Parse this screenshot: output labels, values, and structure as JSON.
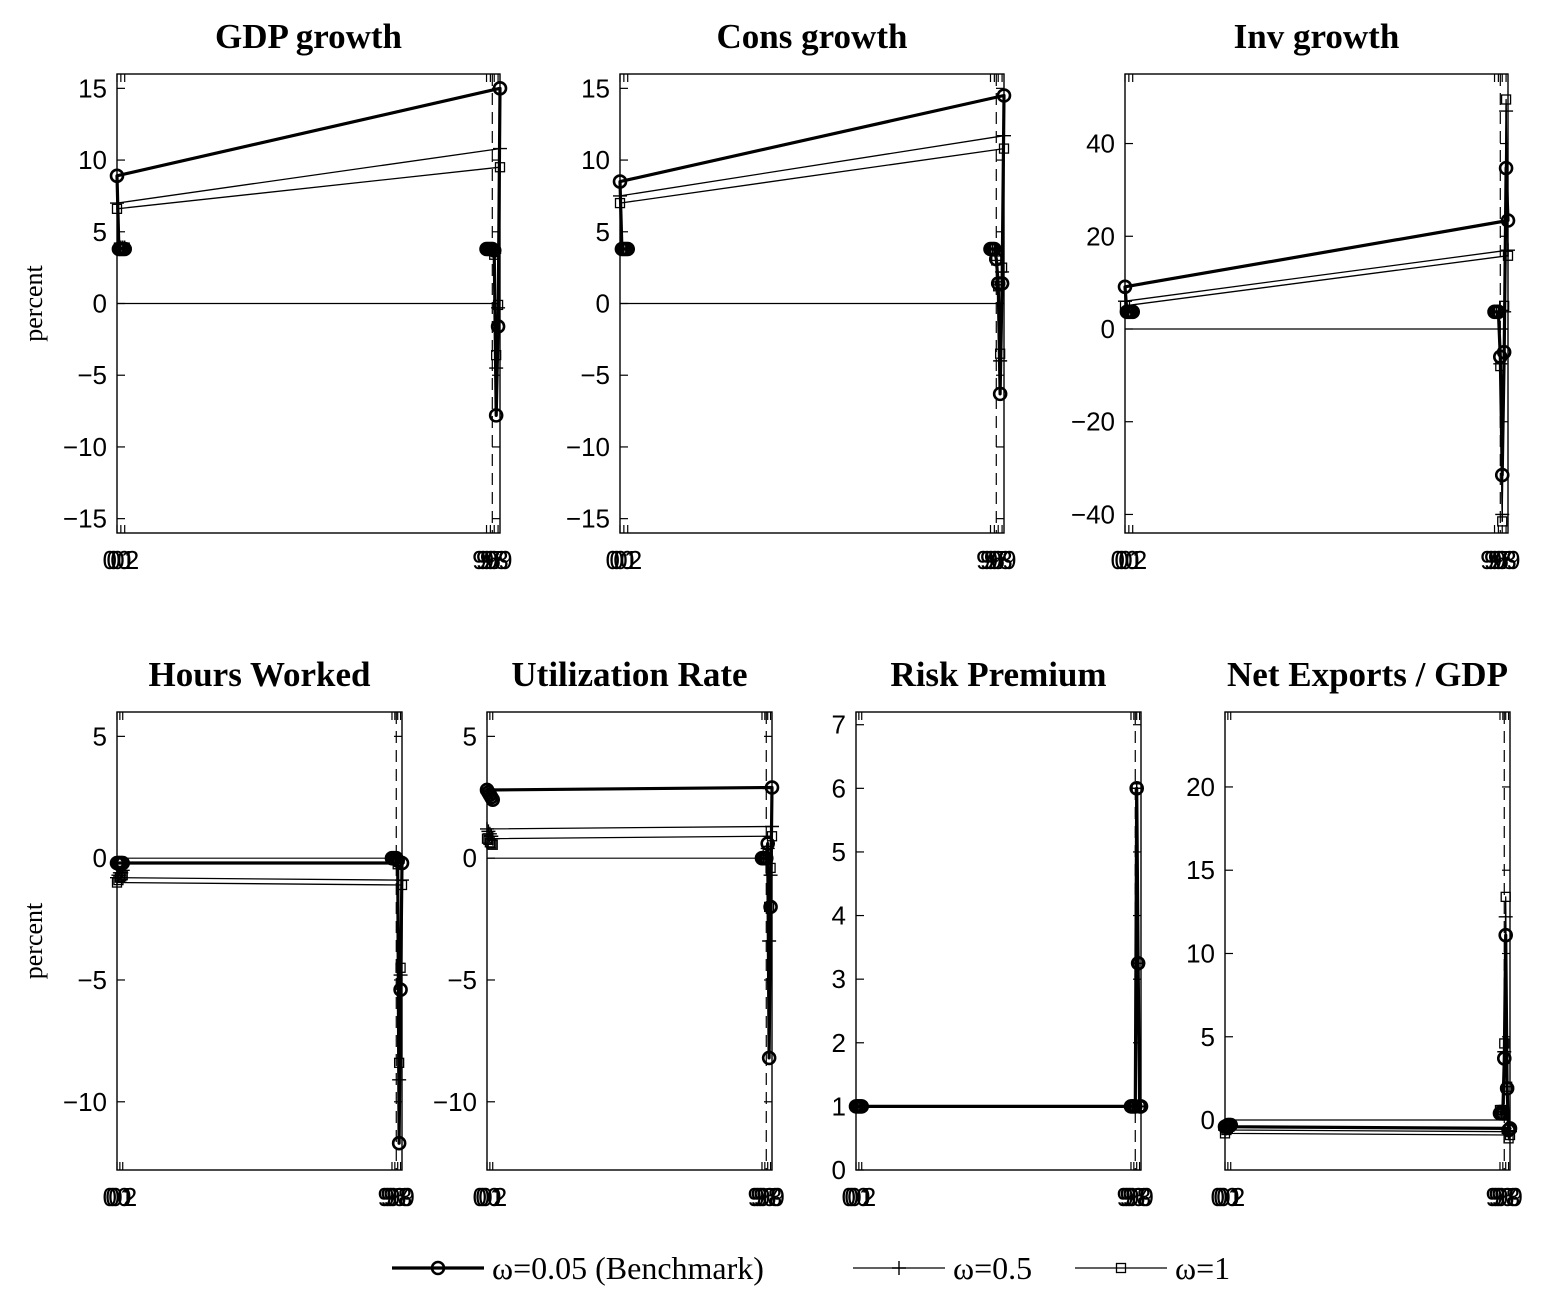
{
  "chart_data": [
    {
      "type": "line",
      "title": "GDP growth",
      "ylabel": "percent",
      "x": [
        "96",
        "96.5",
        "97",
        "97.5",
        "98",
        "98.5",
        "99",
        "99.5",
        "00",
        "00.5",
        "01",
        "01.5",
        "02"
      ],
      "xticks": [
        "96",
        "97",
        "98",
        "99",
        "00",
        "01",
        "02"
      ],
      "ylim": [
        -16,
        16
      ],
      "yticks": [
        -15,
        -10,
        -5,
        0,
        5,
        10,
        15
      ],
      "vline": "97.5",
      "series": [
        {
          "name": "ω=0.05 (Benchmark)",
          "values": [
            3.8,
            3.8,
            3.8,
            3.8,
            3.7,
            -7.8,
            -1.6,
            15.0,
            8.9,
            3.8,
            3.8,
            3.8,
            3.8
          ]
        },
        {
          "name": "ω=0.5",
          "values": [
            3.8,
            3.8,
            3.8,
            3.8,
            3.5,
            -4.5,
            -0.3,
            10.8,
            7.0,
            3.9,
            3.9,
            3.9,
            3.9
          ]
        },
        {
          "name": "ω=1",
          "values": [
            3.8,
            3.8,
            3.8,
            3.8,
            3.4,
            -3.6,
            -0.1,
            9.5,
            6.6,
            3.9,
            3.9,
            3.9,
            3.9
          ]
        }
      ]
    },
    {
      "type": "line",
      "title": "Cons growth",
      "ylabel": "",
      "x": [
        "96",
        "96.5",
        "97",
        "97.5",
        "98",
        "98.5",
        "99",
        "99.5",
        "00",
        "00.5",
        "01",
        "01.5",
        "02"
      ],
      "xticks": [
        "96",
        "97",
        "98",
        "99",
        "00",
        "01",
        "02"
      ],
      "ylim": [
        -16,
        16
      ],
      "yticks": [
        -15,
        -10,
        -5,
        0,
        5,
        10,
        15
      ],
      "vline": "97.5",
      "series": [
        {
          "name": "ω=0.05 (Benchmark)",
          "values": [
            3.8,
            3.8,
            3.8,
            3.1,
            1.4,
            -6.3,
            1.4,
            14.5,
            8.5,
            3.8,
            3.8,
            3.8,
            3.8
          ]
        },
        {
          "name": "ω=0.5",
          "values": [
            3.8,
            3.8,
            3.8,
            3.0,
            1.3,
            -4.0,
            2.2,
            11.7,
            7.5,
            3.8,
            3.8,
            3.8,
            3.8
          ]
        },
        {
          "name": "ω=1",
          "values": [
            3.8,
            3.8,
            3.8,
            3.0,
            1.2,
            -3.5,
            2.5,
            10.8,
            7.0,
            3.8,
            3.8,
            3.8,
            3.8
          ]
        }
      ]
    },
    {
      "type": "line",
      "title": "Inv growth",
      "ylabel": "",
      "x": [
        "96",
        "96.5",
        "97",
        "97.5",
        "98",
        "98.5",
        "99",
        "99.5",
        "00",
        "00.5",
        "01",
        "01.5",
        "02"
      ],
      "xticks": [
        "96",
        "97",
        "98",
        "99",
        "00",
        "01",
        "02"
      ],
      "ylim": [
        -44,
        55
      ],
      "yticks": [
        -40,
        -20,
        0,
        20,
        40
      ],
      "vline": "97.5",
      "series": [
        {
          "name": "ω=0.05 (Benchmark)",
          "values": [
            3.7,
            3.7,
            3.7,
            -6.0,
            -31.5,
            -5.0,
            34.7,
            23.4,
            9.1,
            3.7,
            3.7,
            3.7,
            3.7
          ]
        },
        {
          "name": "ω=0.5",
          "values": [
            3.7,
            3.7,
            3.7,
            -7.5,
            -40.0,
            3.7,
            47.0,
            17.0,
            6.0,
            3.7,
            3.7,
            3.7,
            3.7
          ]
        },
        {
          "name": "ω=1",
          "values": [
            3.7,
            3.7,
            3.7,
            -8.0,
            -41.5,
            5.0,
            49.5,
            15.8,
            5.0,
            3.7,
            3.7,
            3.7,
            3.7
          ]
        }
      ]
    },
    {
      "type": "line",
      "title": "Hours Worked",
      "ylabel": "percent",
      "x": [
        "96",
        "96.5",
        "97",
        "97.5",
        "98",
        "98.5",
        "99",
        "99.5",
        "00",
        "00.5",
        "01",
        "01.5",
        "02"
      ],
      "xticks": [
        "96",
        "97",
        "98",
        "99",
        "00",
        "01",
        "02"
      ],
      "ylim": [
        -12.8,
        6
      ],
      "yticks": [
        -10,
        -5,
        0,
        5
      ],
      "vline": "97.5",
      "series": [
        {
          "name": "ω=0.05 (Benchmark)",
          "values": [
            0,
            0,
            0,
            0,
            -0.1,
            -11.7,
            -5.4,
            -0.2,
            -0.2,
            -0.2,
            -0.2,
            -0.2,
            -0.2
          ]
        },
        {
          "name": "ω=0.5",
          "values": [
            0,
            0,
            0,
            0,
            -0.2,
            -9.1,
            -4.8,
            -0.9,
            -0.8,
            -0.7,
            -0.6,
            -0.6,
            -0.5
          ]
        },
        {
          "name": "ω=1",
          "values": [
            0,
            0,
            0,
            0,
            -0.25,
            -8.4,
            -4.5,
            -1.1,
            -1.0,
            -0.9,
            -0.8,
            -0.75,
            -0.7
          ]
        }
      ]
    },
    {
      "type": "line",
      "title": "Utilization Rate",
      "ylabel": "",
      "x": [
        "96",
        "96.5",
        "97",
        "97.5",
        "98",
        "98.5",
        "99",
        "99.5",
        "00",
        "00.5",
        "01",
        "01.5",
        "02"
      ],
      "xticks": [
        "96",
        "97",
        "98",
        "99",
        "00",
        "01",
        "02"
      ],
      "ylim": [
        -12.8,
        6
      ],
      "yticks": [
        -10,
        -5,
        0,
        5
      ],
      "vline": "97.5",
      "series": [
        {
          "name": "ω=0.05 (Benchmark)",
          "values": [
            0,
            0,
            0,
            0,
            0.6,
            -8.2,
            -2.0,
            2.9,
            2.8,
            2.7,
            2.6,
            2.5,
            2.4
          ]
        },
        {
          "name": "ω=0.5",
          "values": [
            0,
            0,
            0,
            0,
            0.4,
            -3.4,
            -0.7,
            1.3,
            1.2,
            1.1,
            1.0,
            0.9,
            0.8
          ]
        },
        {
          "name": "ω=1",
          "values": [
            0,
            0,
            0,
            0,
            0.3,
            -2.0,
            -0.4,
            0.9,
            0.8,
            0.75,
            0.65,
            0.6,
            0.55
          ]
        }
      ]
    },
    {
      "type": "line",
      "title": "Risk Premium",
      "ylabel": "",
      "x": [
        "96",
        "96.5",
        "97",
        "97.5",
        "98",
        "98.5",
        "99",
        "99.5",
        "00",
        "00.5",
        "01",
        "01.5",
        "02"
      ],
      "xticks": [
        "96",
        "97",
        "98",
        "99",
        "00",
        "01",
        "02"
      ],
      "ylim": [
        0,
        7.2
      ],
      "yticks": [
        0,
        1,
        2,
        3,
        4,
        5,
        6,
        7
      ],
      "vline": "97.5",
      "series": [
        {
          "name": "ω=0.05 (Benchmark)",
          "values": [
            1,
            1,
            1,
            1,
            6,
            3.25,
            1,
            1,
            1,
            1,
            1,
            1,
            1
          ]
        },
        {
          "name": "ω=0.5",
          "values": [
            1,
            1,
            1,
            1,
            6,
            3.25,
            1,
            1,
            1,
            1,
            1,
            1,
            1
          ]
        },
        {
          "name": "ω=1",
          "values": [
            1,
            1,
            1,
            1,
            6,
            3.25,
            1,
            1,
            1,
            1,
            1,
            1,
            1
          ]
        }
      ]
    },
    {
      "type": "line",
      "title": "Net Exports / GDP",
      "ylabel": "",
      "x": [
        "96",
        "96.5",
        "97",
        "97.5",
        "98",
        "98.5",
        "99",
        "99.5",
        "00",
        "00.5",
        "01",
        "01.5",
        "02"
      ],
      "xticks": [
        "96",
        "97",
        "98",
        "99",
        "00",
        "01",
        "02"
      ],
      "ylim": [
        -3,
        24.5
      ],
      "yticks": [
        0,
        5,
        10,
        15,
        20
      ],
      "vline": "97.5",
      "series": [
        {
          "name": "ω=0.05 (Benchmark)",
          "values": [
            0.4,
            0.4,
            0.4,
            3.7,
            11.1,
            1.9,
            -0.6,
            -0.5,
            -0.4,
            -0.4,
            -0.3,
            -0.3,
            -0.3
          ]
        },
        {
          "name": "ω=0.5",
          "values": [
            0.5,
            0.5,
            0.5,
            4.1,
            12.2,
            2.0,
            -0.8,
            -0.7,
            -0.6,
            -0.5,
            -0.4,
            -0.4,
            -0.3
          ]
        },
        {
          "name": "ω=1",
          "values": [
            0.6,
            0.6,
            0.6,
            4.6,
            13.4,
            2.0,
            -1.1,
            -0.9,
            -0.8,
            -0.6,
            -0.5,
            -0.4,
            -0.3
          ]
        }
      ]
    }
  ],
  "legend": [
    {
      "label": "ω=0.05 (Benchmark)",
      "marker": "circle"
    },
    {
      "label": "ω=0.5",
      "marker": "plus"
    },
    {
      "label": "ω=1",
      "marker": "square"
    }
  ]
}
